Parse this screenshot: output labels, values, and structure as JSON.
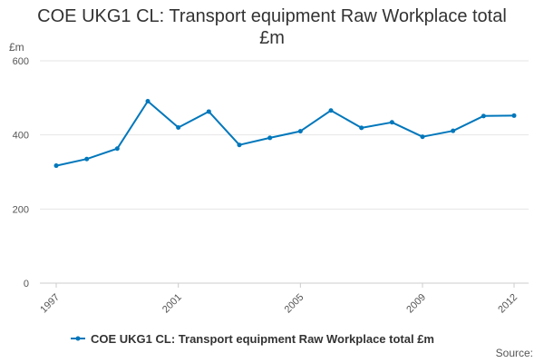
{
  "chart_data": {
    "type": "line",
    "title_lines": [
      "COE UKG1 CL: Transport equipment Raw Workplace total",
      "£m"
    ],
    "ylabel": "£m",
    "xlabel": "",
    "ylim": [
      0,
      600
    ],
    "yticks": [
      0,
      200,
      400,
      600
    ],
    "xlim": [
      1997,
      2012
    ],
    "xticks": [
      1997,
      2001,
      2005,
      2009,
      2012
    ],
    "grid": true,
    "legend_position": "bottom",
    "series": [
      {
        "name": "COE UKG1 CL: Transport equipment Raw Workplace total £m",
        "color": "#0077bb",
        "x": [
          1997,
          1998,
          1999,
          2000,
          2001,
          2002,
          2003,
          2004,
          2005,
          2006,
          2007,
          2008,
          2009,
          2010,
          2011,
          2012
        ],
        "values": [
          317,
          335,
          363,
          491,
          420,
          463,
          373,
          392,
          410,
          466,
          419,
          434,
          395,
          411,
          451,
          452
        ]
      }
    ]
  },
  "source_label": "Source:"
}
